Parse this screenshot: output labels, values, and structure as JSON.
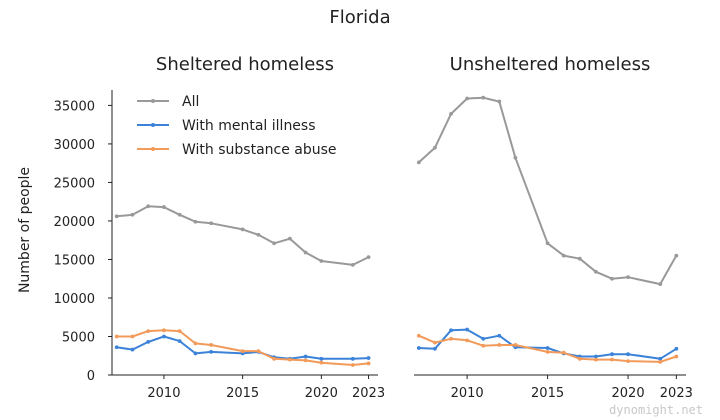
{
  "chart_data": {
    "type": "line",
    "title": "Florida",
    "ylabel": "Number of people",
    "ylim": [
      0,
      37000
    ],
    "xlim": [
      2006.7,
      2023.6
    ],
    "x_ticks": [
      2010,
      2015,
      2020,
      2023
    ],
    "y_ticks": [
      0,
      5000,
      10000,
      15000,
      20000,
      25000,
      30000,
      35000
    ],
    "legend": {
      "placement": "top-left of first panel",
      "entries": [
        "All",
        "With mental illness",
        "With substance abuse"
      ]
    },
    "colors": {
      "All": "#999999",
      "With mental illness": "#3b82d8",
      "With substance abuse": "#f29a5a"
    },
    "watermark": "dynomight.net",
    "panels": [
      {
        "subtitle": "Sheltered homeless",
        "x": [
          2007,
          2008,
          2009,
          2010,
          2011,
          2012,
          2013,
          2015,
          2016,
          2017,
          2018,
          2019,
          2020,
          2022,
          2023
        ],
        "series": [
          {
            "name": "All",
            "values": [
              20600,
              20800,
              21900,
              21800,
              20800,
              19900,
              19700,
              18900,
              18200,
              17100,
              17700,
              15900,
              14800,
              14300,
              15300
            ]
          },
          {
            "name": "With mental illness",
            "values": [
              3600,
              3300,
              4300,
              5000,
              4400,
              2800,
              3000,
              2800,
              3000,
              2300,
              2100,
              2400,
              2100,
              2100,
              2200
            ]
          },
          {
            "name": "With substance abuse",
            "values": [
              5000,
              5000,
              5700,
              5800,
              5700,
              4100,
              3900,
              3100,
              3100,
              2100,
              2000,
              1900,
              1600,
              1300,
              1500
            ]
          }
        ]
      },
      {
        "subtitle": "Unsheltered homeless",
        "x": [
          2007,
          2008,
          2009,
          2010,
          2011,
          2012,
          2013,
          2015,
          2016,
          2017,
          2018,
          2019,
          2020,
          2022,
          2023
        ],
        "series": [
          {
            "name": "All",
            "values": [
              27600,
              29500,
              33900,
              35900,
              36000,
              35500,
              28200,
              17100,
              15500,
              15100,
              13400,
              12500,
              12700,
              11800,
              15500
            ]
          },
          {
            "name": "With mental illness",
            "values": [
              3500,
              3400,
              5800,
              5900,
              4700,
              5100,
              3600,
              3500,
              2800,
              2400,
              2400,
              2700,
              2700,
              2100,
              3400
            ]
          },
          {
            "name": "With substance abuse",
            "values": [
              5100,
              4200,
              4700,
              4500,
              3800,
              3900,
              3900,
              3000,
              2900,
              2100,
              2000,
              2000,
              1800,
              1700,
              2400
            ]
          }
        ]
      }
    ]
  }
}
